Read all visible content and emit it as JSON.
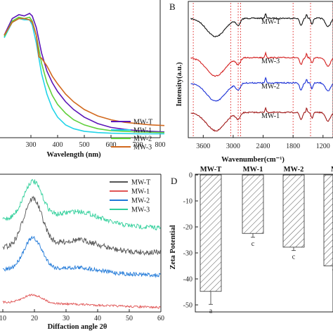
{
  "chart_data": [
    {
      "panel": "A",
      "panel_label": "",
      "type": "line",
      "xlabel": "Wavelength (nm)",
      "ylabel": "",
      "xlim": [
        200,
        800
      ],
      "xticks": [
        "300",
        "400",
        "500",
        "600",
        "700",
        "800"
      ],
      "series": [
        {
          "name": "MW-T",
          "color": "#5b16b8",
          "x": [
            200,
            230,
            255,
            275,
            295,
            305,
            320,
            340,
            360,
            380,
            400,
            430,
            460,
            500,
            550,
            600,
            650,
            700,
            750,
            800
          ],
          "y": [
            0.8,
            0.93,
            0.96,
            0.95,
            0.97,
            0.95,
            0.86,
            0.66,
            0.52,
            0.43,
            0.36,
            0.28,
            0.22,
            0.16,
            0.11,
            0.08,
            0.065,
            0.055,
            0.05,
            0.045
          ]
        },
        {
          "name": "MW-1",
          "color": "#22d4e8",
          "x": [
            200,
            230,
            255,
            275,
            295,
            305,
            320,
            340,
            360,
            380,
            400,
            430,
            460,
            500,
            550,
            600,
            700,
            800
          ],
          "y": [
            0.78,
            0.9,
            0.93,
            0.92,
            0.92,
            0.88,
            0.74,
            0.5,
            0.34,
            0.23,
            0.16,
            0.1,
            0.07,
            0.05,
            0.04,
            0.035,
            0.03,
            0.03
          ]
        },
        {
          "name": "MW-2",
          "color": "#5fcf3a",
          "x": [
            200,
            230,
            255,
            275,
            295,
            305,
            320,
            340,
            360,
            380,
            400,
            430,
            460,
            500,
            550,
            600,
            700,
            800
          ],
          "y": [
            0.79,
            0.91,
            0.94,
            0.93,
            0.94,
            0.91,
            0.8,
            0.58,
            0.43,
            0.33,
            0.26,
            0.19,
            0.14,
            0.1,
            0.07,
            0.055,
            0.045,
            0.04
          ]
        },
        {
          "name": "MW-3",
          "color": "#d2691e",
          "x": [
            200,
            230,
            255,
            275,
            295,
            305,
            320,
            330,
            340,
            360,
            380,
            400,
            430,
            460,
            500,
            550,
            600,
            650,
            700,
            750,
            800
          ],
          "y": [
            0.8,
            0.9,
            0.93,
            0.93,
            0.92,
            0.9,
            0.8,
            0.63,
            0.62,
            0.56,
            0.48,
            0.42,
            0.34,
            0.28,
            0.22,
            0.17,
            0.14,
            0.12,
            0.11,
            0.1,
            0.095
          ]
        }
      ]
    },
    {
      "panel": "B",
      "panel_label": "B",
      "type": "line",
      "xlabel": "Wavenumber(cm⁻¹)",
      "ylabel": "Intensity(a.u.)",
      "xlim": [
        3900,
        1000
      ],
      "xticks": [
        "3600",
        "3000",
        "2400",
        "1800",
        "1200"
      ],
      "dashed_lines_at": [
        3800,
        3050,
        2900,
        2850,
        1800,
        1450,
        1000
      ],
      "series": [
        {
          "name": "MW-T",
          "color": "#111111"
        },
        {
          "name": "MW-3",
          "color": "#d42020"
        },
        {
          "name": "MW-2",
          "color": "#1a2fd6"
        },
        {
          "name": "MW-1",
          "color": "#a01818"
        }
      ]
    },
    {
      "panel": "C",
      "panel_label": "",
      "type": "line",
      "xlabel": "Diffaction angle 2θ",
      "ylabel": "",
      "xlim": [
        10,
        60
      ],
      "xticks": [
        "10",
        "20",
        "30",
        "40",
        "50",
        "60"
      ],
      "series": [
        {
          "name": "MW-T",
          "color": "#555555"
        },
        {
          "name": "MW-1",
          "color": "#e05555"
        },
        {
          "name": "MW-2",
          "color": "#1e78d8"
        },
        {
          "name": "MW-3",
          "color": "#2fcf9a"
        }
      ]
    },
    {
      "panel": "D",
      "panel_label": "D",
      "type": "bar",
      "ylabel": "Zeta Potential",
      "ylim": [
        -50,
        0
      ],
      "yticks": [
        "0",
        "-10",
        "-20",
        "-30",
        "-40",
        "-50"
      ],
      "categories": [
        "MW-T",
        "MW-1",
        "MW-2",
        "MW-3"
      ],
      "category_labels_visible": [
        "MW-T",
        "MW-1",
        "MW-2",
        "M"
      ],
      "values": [
        -44.8,
        -22.5,
        -27.8,
        -35
      ],
      "errors": [
        5,
        1.5,
        1.3,
        1.5
      ],
      "letters": [
        "a",
        "c",
        "c",
        ""
      ]
    }
  ]
}
